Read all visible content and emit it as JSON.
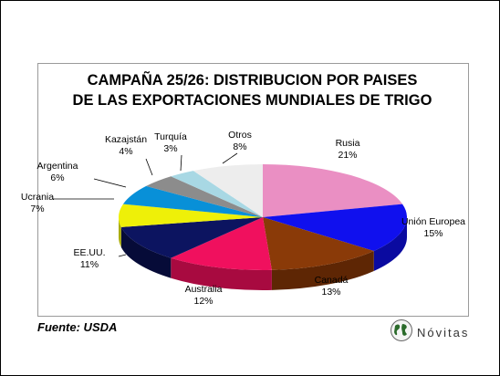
{
  "chart_data": {
    "type": "pie",
    "title_line_1": "CAMPAÑA  25/26: DISTRIBUCION  POR PAISES",
    "title_line_2": "DE LAS  EXPORTACIONES  MUNDIALES  DE TRIGO",
    "slices": [
      {
        "name": "Rusia",
        "value": 21,
        "value_label": "21%",
        "color": "#ea8fc3",
        "side_color": "#b06a93"
      },
      {
        "name": "Unión Europea",
        "value": 15,
        "value_label": "15%",
        "color": "#1010ee",
        "side_color": "#0a0aa0"
      },
      {
        "name": "Canadá",
        "value": 13,
        "value_label": "13%",
        "color": "#8a3a08",
        "side_color": "#5e2604"
      },
      {
        "name": "Australia",
        "value": 12,
        "value_label": "12%",
        "color": "#f0105e",
        "side_color": "#a80a40"
      },
      {
        "name": "EE.UU.",
        "value": 11,
        "value_label": "11%",
        "color": "#0c1460",
        "side_color": "#060b38"
      },
      {
        "name": "Ucrania",
        "value": 7,
        "value_label": "7%",
        "color": "#eef008",
        "side_color": "#a9ab04"
      },
      {
        "name": "Argentina",
        "value": 6,
        "value_label": "6%",
        "color": "#0890d8",
        "side_color": "#05669a"
      },
      {
        "name": "Kazajstán",
        "value": 4,
        "value_label": "4%",
        "color": "#8c8c8c",
        "side_color": "#5e5e5e"
      },
      {
        "name": "Turquía",
        "value": 3,
        "value_label": "3%",
        "color": "#a8d8e4",
        "side_color": "#74a4b0"
      },
      {
        "name": "Otros",
        "value": 8,
        "value_label": "8%",
        "color": "#ededed",
        "side_color": "#b8b8b8"
      }
    ]
  },
  "footer": {
    "source": "Fuente: USDA",
    "logo_text": "Nóvitas"
  }
}
